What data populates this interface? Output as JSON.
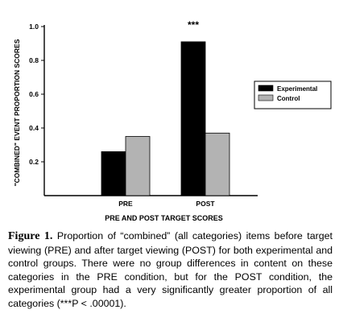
{
  "chart_data": {
    "type": "bar",
    "categories": [
      "PRE",
      "POST"
    ],
    "series": [
      {
        "name": "Experimental",
        "values": [
          0.26,
          0.91
        ],
        "color": "#000000"
      },
      {
        "name": "Control",
        "values": [
          0.35,
          0.37
        ],
        "color": "#b3b3b3"
      }
    ],
    "xlabel": "PRE AND POST TARGET SCORES",
    "ylabel": "\"COMBINED\" EVENT PROPORTION SCORES",
    "ylim": [
      0,
      1.0
    ],
    "yticks": [
      "1.0",
      "0.8",
      "0.6",
      "0.4",
      "0.2"
    ],
    "annotation": "***",
    "legend_position": "right",
    "grid": false
  },
  "caption": {
    "label": "Figure 1.",
    "text": "Proportion of “combined” (all categories) items before target viewing (PRE) and after target viewing (POST) for both experimental and control groups. There were no group differences in content on these categories in the PRE condition, but for the POST condition, the experimental group had a very significantly greater proportion of all categories (***P < .00001)."
  }
}
